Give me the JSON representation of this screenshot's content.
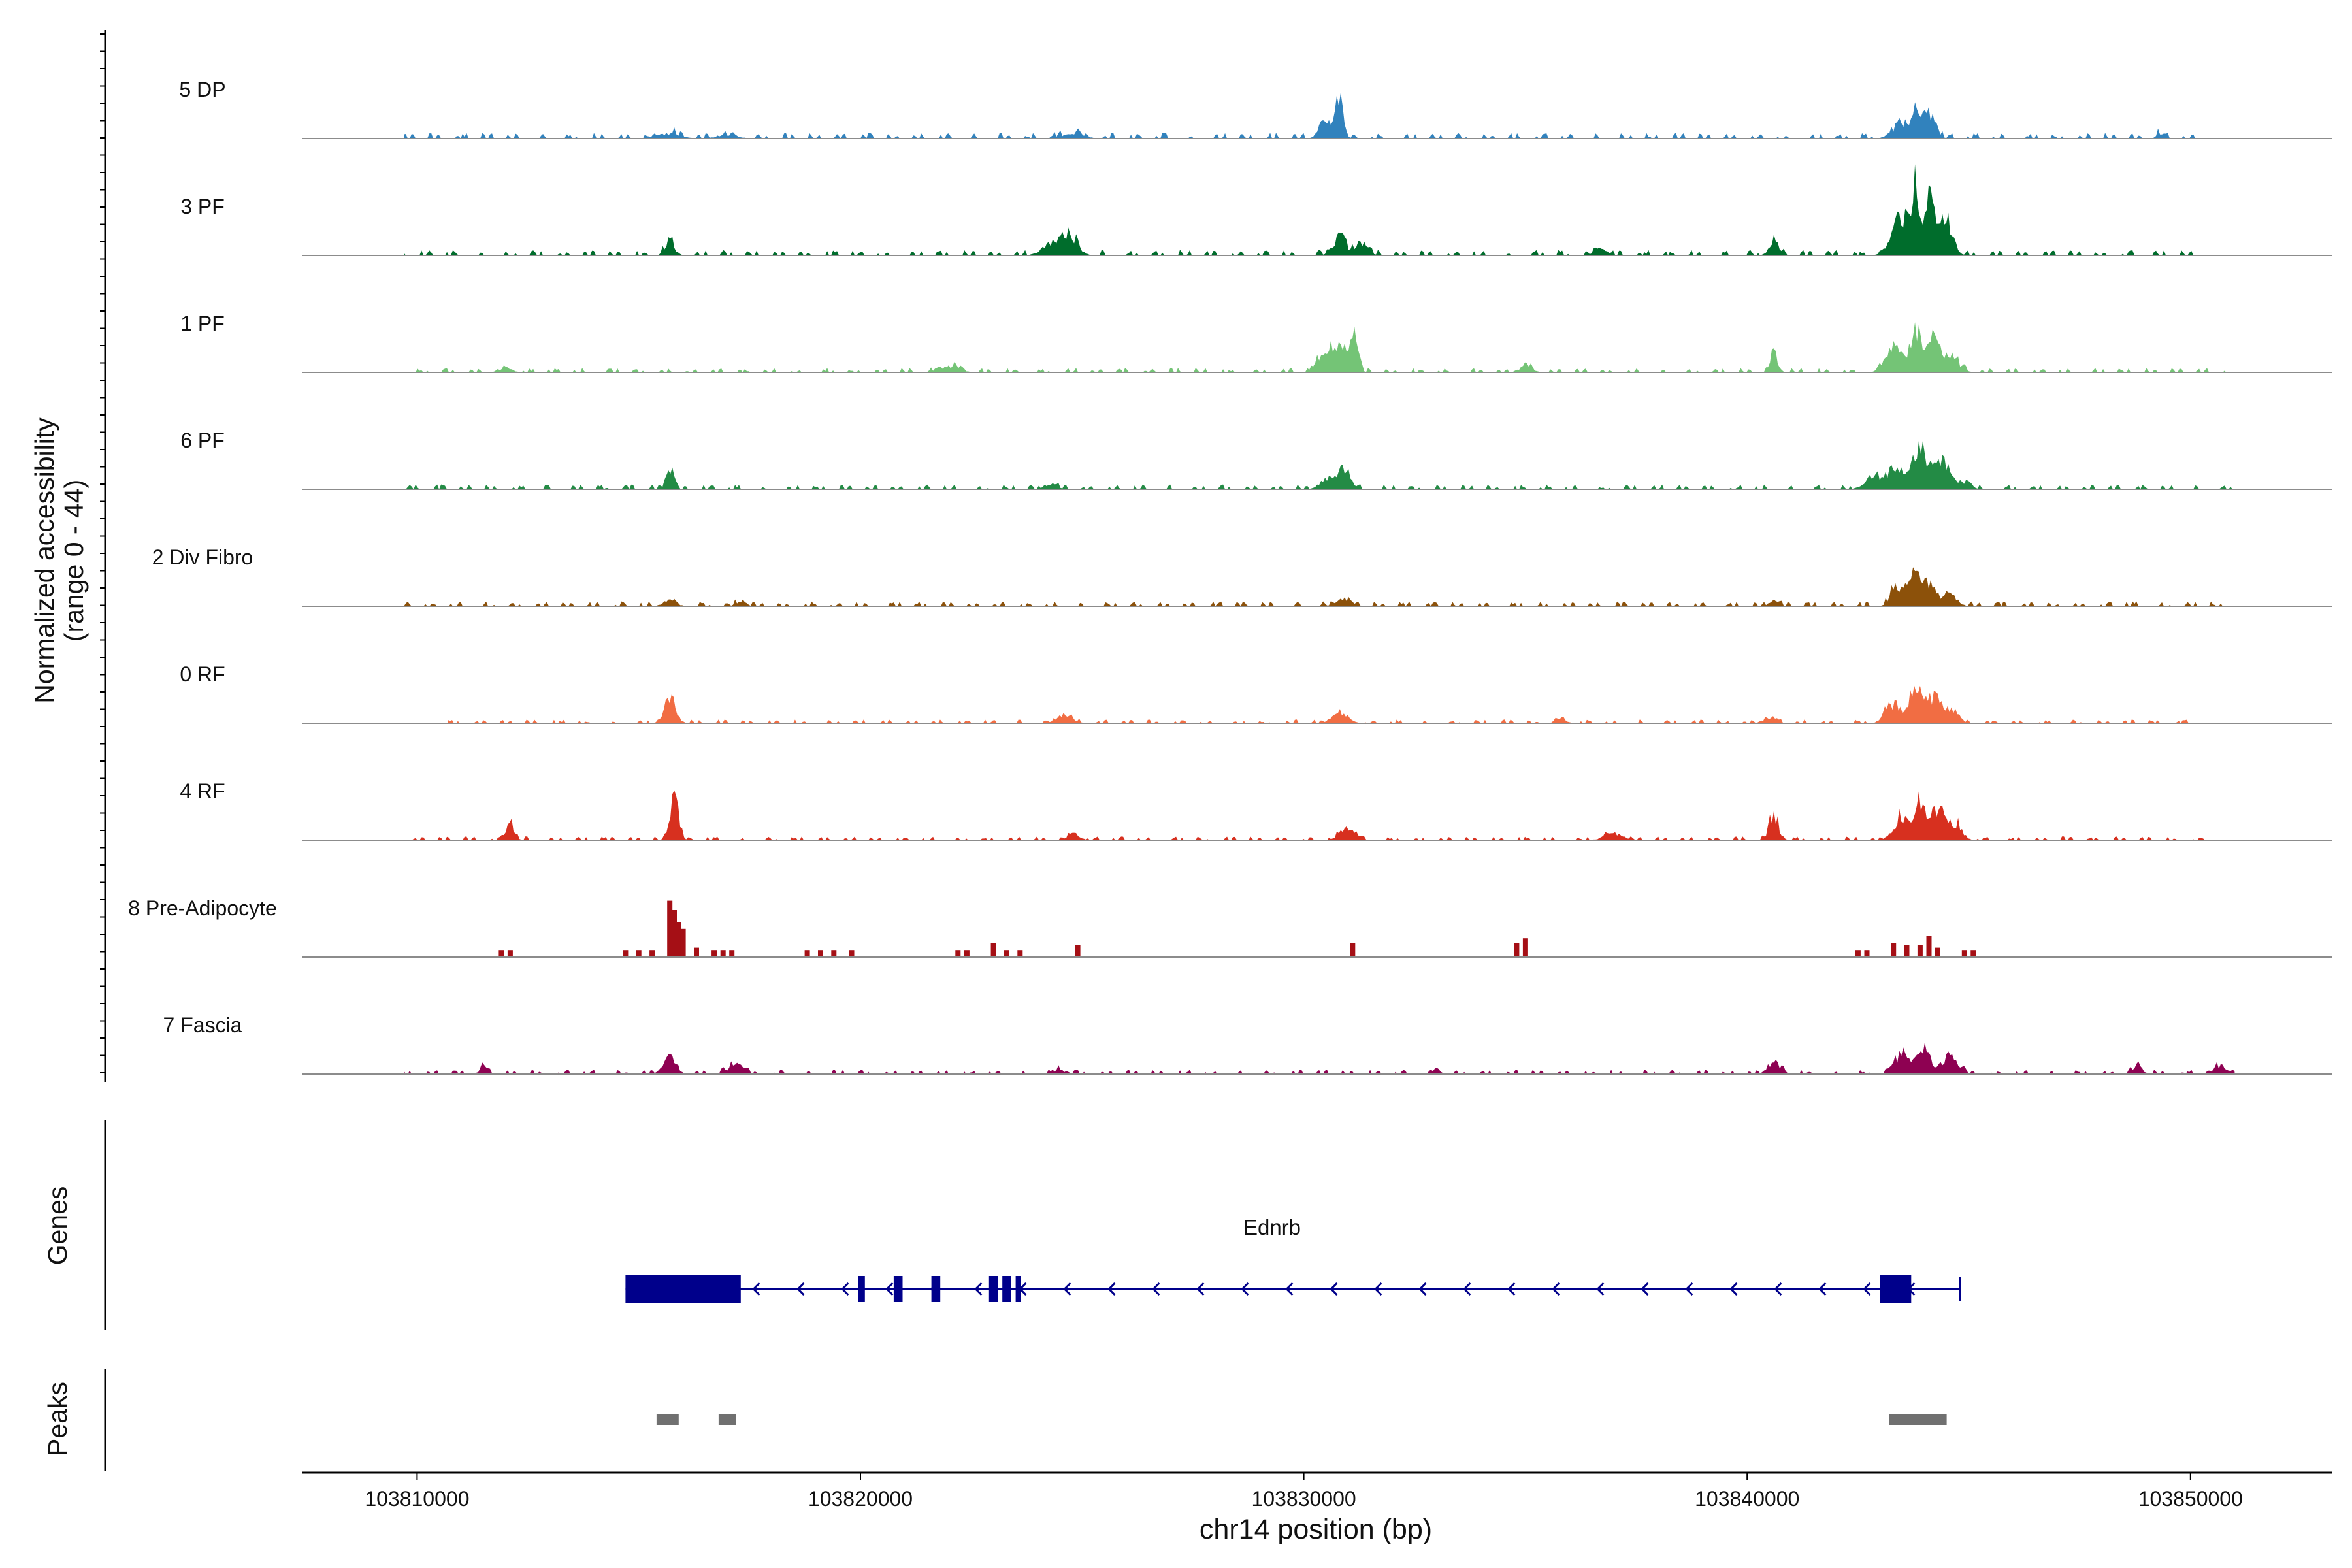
{
  "chart_data": {
    "type": "area",
    "title": "",
    "ylabel_line1": "Normalized accessibility",
    "ylabel_line2": "(range 0 - 44)",
    "xlabel": "chr14 position (bp)",
    "xlim": [
      103807400,
      103853200
    ],
    "ylim": [
      0,
      44
    ],
    "x_ticks": [
      103810000,
      103820000,
      103830000,
      103840000,
      103850000
    ],
    "x_tick_labels": [
      "103810000",
      "103820000",
      "103830000",
      "103840000",
      "103850000"
    ],
    "tracks": [
      {
        "name": "5 DP",
        "color": "#3182bd",
        "base_level": 1.5,
        "extent": [
          103809700,
          103850300
        ],
        "peaks": [
          [
            103815700,
            2.5,
            350
          ],
          [
            103817000,
            2.0,
            300
          ],
          [
            103824800,
            3.0,
            300
          ],
          [
            103830800,
            18.0,
            120
          ],
          [
            103830500,
            8.0,
            200
          ],
          [
            103843500,
            8.0,
            280
          ],
          [
            103844100,
            13.0,
            200
          ],
          [
            103843800,
            10.0,
            120
          ],
          [
            103849300,
            3.0,
            100
          ]
        ]
      },
      {
        "name": "3 PF",
        "color": "#006d2c",
        "base_level": 1.5,
        "extent": [
          103809700,
          103850300
        ],
        "peaks": [
          [
            103815700,
            7.0,
            150
          ],
          [
            103824700,
            10.0,
            250
          ],
          [
            103824300,
            5.0,
            300
          ],
          [
            103830800,
            9.0,
            200
          ],
          [
            103831300,
            6.0,
            200
          ],
          [
            103840600,
            8.0,
            150
          ],
          [
            103843500,
            20.0,
            300
          ],
          [
            103844100,
            26.0,
            220
          ],
          [
            103843800,
            27.0,
            90
          ],
          [
            103844500,
            15.0,
            200
          ],
          [
            103836700,
            3.0,
            200
          ]
        ]
      },
      {
        "name": "1 PF",
        "color": "#74c476",
        "base_level": 1.2,
        "extent": [
          103809700,
          103850800
        ],
        "peaks": [
          [
            103830700,
            13.0,
            230
          ],
          [
            103831100,
            18.0,
            150
          ],
          [
            103830400,
            6.0,
            200
          ],
          [
            103840600,
            10.0,
            120
          ],
          [
            103843300,
            12.0,
            250
          ],
          [
            103843800,
            20.0,
            180
          ],
          [
            103844200,
            18.0,
            200
          ],
          [
            103844600,
            8.0,
            250
          ],
          [
            103822000,
            3.0,
            300
          ],
          [
            103835000,
            3.0,
            200
          ],
          [
            103812000,
            2.0,
            200
          ]
        ]
      },
      {
        "name": "6 PF",
        "color": "#238b45",
        "base_level": 1.3,
        "extent": [
          103809700,
          103851000
        ],
        "peaks": [
          [
            103815700,
            11.0,
            120
          ],
          [
            103830900,
            10.0,
            200
          ],
          [
            103830500,
            6.0,
            200
          ],
          [
            103843300,
            10.0,
            280
          ],
          [
            103843900,
            19.0,
            250
          ],
          [
            103844400,
            14.0,
            220
          ],
          [
            103842800,
            5.0,
            250
          ],
          [
            103844900,
            4.0,
            200
          ],
          [
            103824300,
            3.0,
            200
          ]
        ]
      },
      {
        "name": "2 Div Fibro",
        "color": "#8c510a",
        "base_level": 1.3,
        "extent": [
          103809700,
          103851000
        ],
        "peaks": [
          [
            103843700,
            15.0,
            250
          ],
          [
            103844100,
            10.0,
            250
          ],
          [
            103843300,
            8.0,
            150
          ],
          [
            103844600,
            6.0,
            200
          ],
          [
            103830900,
            4.0,
            250
          ],
          [
            103815700,
            3.0,
            200
          ],
          [
            103817300,
            3.0,
            150
          ],
          [
            103840600,
            3.0,
            150
          ]
        ]
      },
      {
        "name": "0 RF",
        "color": "#f16d43",
        "base_level": 1.0,
        "extent": [
          103810700,
          103850200
        ],
        "peaks": [
          [
            103815700,
            13.0,
            180
          ],
          [
            103830800,
            5.0,
            250
          ],
          [
            103824600,
            4.0,
            250
          ],
          [
            103843300,
            10.0,
            250
          ],
          [
            103843800,
            18.0,
            180
          ],
          [
            103844200,
            14.0,
            200
          ],
          [
            103844600,
            7.0,
            200
          ],
          [
            103835800,
            3.0,
            150
          ],
          [
            103840500,
            3.0,
            200
          ]
        ]
      },
      {
        "name": "4 RF",
        "color": "#d7301f",
        "base_level": 1.0,
        "extent": [
          103809700,
          103850400
        ],
        "peaks": [
          [
            103815800,
            22.0,
            130
          ],
          [
            103812100,
            9.0,
            130
          ],
          [
            103840600,
            13.0,
            150
          ],
          [
            103843500,
            12.0,
            250
          ],
          [
            103843900,
            18.0,
            150
          ],
          [
            103844300,
            16.0,
            200
          ],
          [
            103844700,
            8.0,
            200
          ],
          [
            103831000,
            6.0,
            250
          ],
          [
            103824800,
            3.0,
            200
          ],
          [
            103837000,
            3.0,
            300
          ]
        ]
      },
      {
        "name": "8 Pre-Adipocyte",
        "color": "#a50f15",
        "base_level": 0.0,
        "extent": [
          103809700,
          103851000
        ],
        "peaks": []
      },
      {
        "name": "7 Fascia",
        "color": "#8e0152",
        "base_level": 1.2,
        "extent": [
          103809700,
          103851000
        ],
        "peaks": [
          [
            103815700,
            8.0,
            200
          ],
          [
            103817200,
            5.0,
            250
          ],
          [
            103811500,
            4.0,
            120
          ],
          [
            103843500,
            10.0,
            250
          ],
          [
            103844000,
            12.0,
            200
          ],
          [
            103844600,
            8.0,
            250
          ],
          [
            103840600,
            6.0,
            200
          ],
          [
            103850700,
            4.0,
            250
          ],
          [
            103848800,
            4.0,
            150
          ],
          [
            103833000,
            3.0,
            100
          ],
          [
            103824500,
            2.0,
            200
          ]
        ]
      }
    ],
    "preadipocyte_bars": [
      [
        103811900,
        3
      ],
      [
        103812100,
        3
      ],
      [
        103814700,
        3
      ],
      [
        103815000,
        3
      ],
      [
        103815300,
        3
      ],
      [
        103815700,
        24
      ],
      [
        103815800,
        20
      ],
      [
        103815900,
        15
      ],
      [
        103816000,
        12
      ],
      [
        103816300,
        4
      ],
      [
        103816700,
        3
      ],
      [
        103816900,
        3
      ],
      [
        103817100,
        3
      ],
      [
        103818800,
        3
      ],
      [
        103819100,
        3
      ],
      [
        103819400,
        3
      ],
      [
        103819800,
        3
      ],
      [
        103822200,
        3
      ],
      [
        103822400,
        3
      ],
      [
        103823000,
        6
      ],
      [
        103823300,
        3
      ],
      [
        103823600,
        3
      ],
      [
        103824900,
        5
      ],
      [
        103831100,
        6
      ],
      [
        103834800,
        6
      ],
      [
        103835000,
        8
      ],
      [
        103842500,
        3
      ],
      [
        103842700,
        3
      ],
      [
        103843300,
        6
      ],
      [
        103843600,
        5
      ],
      [
        103843900,
        5
      ],
      [
        103844100,
        9
      ],
      [
        103844300,
        4
      ],
      [
        103844900,
        3
      ],
      [
        103845100,
        3
      ]
    ],
    "genes_label": "Genes",
    "gene": {
      "name": "Ednrb",
      "color": "#00008b",
      "strand": "-",
      "span": [
        103814700,
        103844800
      ],
      "exons": [
        [
          103814700,
          103817300
        ],
        [
          103819950,
          103820100
        ],
        [
          103820750,
          103820950
        ],
        [
          103821600,
          103821800
        ],
        [
          103822900,
          103823100
        ],
        [
          103823200,
          103823400
        ],
        [
          103823500,
          103823600
        ],
        [
          103843000,
          103843700
        ]
      ],
      "thick_exons": [
        [
          103814700,
          103817300
        ],
        [
          103843000,
          103843700
        ]
      ]
    },
    "peaks_label": "Peaks",
    "peaks": [
      [
        103815400,
        103815900
      ],
      [
        103816800,
        103817200
      ],
      [
        103843200,
        103844500
      ]
    ],
    "peak_color": "#707070"
  }
}
